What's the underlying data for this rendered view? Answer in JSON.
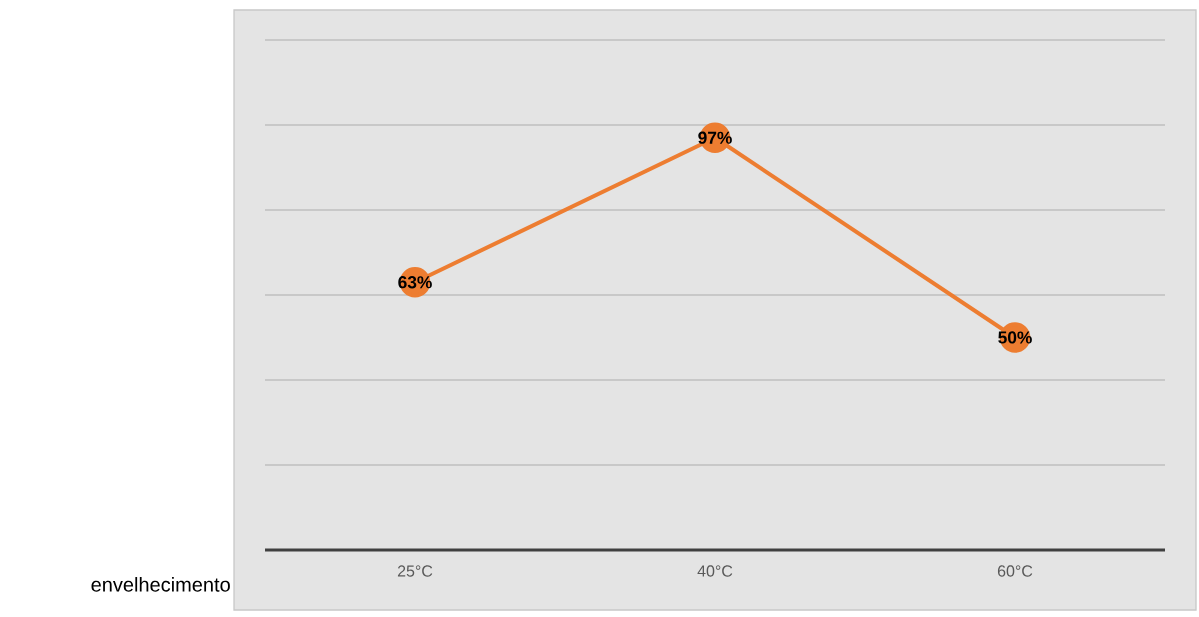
{
  "chart_data": {
    "type": "line",
    "categories": [
      "25°C",
      "40°C",
      "60°C"
    ],
    "series": [
      {
        "color": "#ed7d31",
        "values": [
          63,
          97,
          50
        ],
        "value_labels": [
          "63%",
          "97%",
          "50%"
        ]
      }
    ],
    "ylim": [
      0,
      120
    ],
    "yticks": [
      {
        "value": 0,
        "label": null
      },
      {
        "value": 20,
        "label": null
      },
      {
        "value": 40,
        "label": null
      },
      {
        "value": 60,
        "label": null
      },
      {
        "value": 80,
        "label": null
      },
      {
        "value": 100,
        "label": null
      },
      {
        "value": 120,
        "label": null
      }
    ],
    "grid": "y",
    "tick_labels": "x",
    "marker": "circle",
    "line_style": "solid",
    "annotations": [
      "envelhecimento"
    ]
  }
}
